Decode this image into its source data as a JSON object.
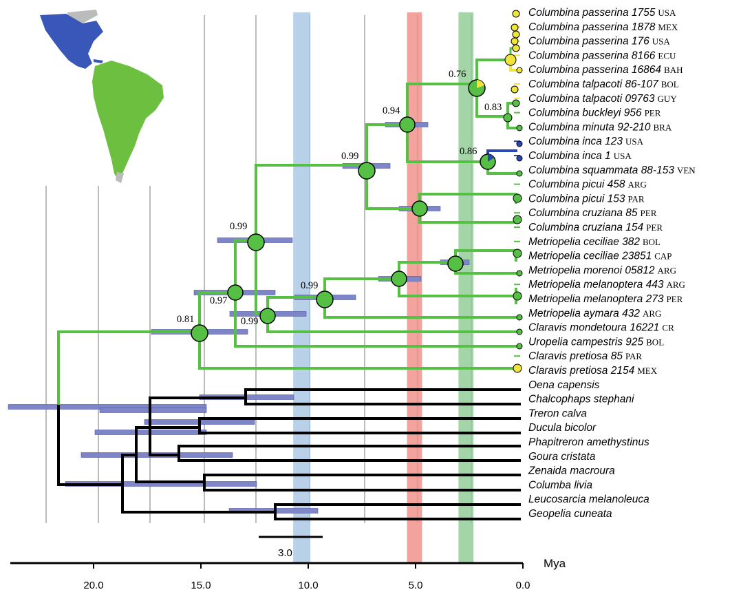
{
  "colors": {
    "green": "#55c043",
    "black": "#000000",
    "yellow": "#f0e43a",
    "blue": "#2a46b0",
    "hpd": "#7f86c8",
    "band_blue": "#a6c4e2",
    "band_red": "#ef8c84",
    "band_green": "#8cca92",
    "land_green": "#6cbf3f",
    "land_blue": "#3957b8",
    "land_grey": "#bbbbbb"
  },
  "taxa": [
    {
      "name": "Columbina passerina 1755",
      "code": "USA"
    },
    {
      "name": "Columbina passerina 1878",
      "code": "MEX"
    },
    {
      "name": "Columbina passerina 176",
      "code": "USA"
    },
    {
      "name": "Columbina passerina 8166",
      "code": "ECU"
    },
    {
      "name": "Columbina passerina 16864",
      "code": "BAH"
    },
    {
      "name": "Columbina talpacoti 86-107",
      "code": "BOL"
    },
    {
      "name": "Columbina talpacoti 09763",
      "code": "GUY"
    },
    {
      "name": "Columbina buckleyi 956",
      "code": "PER"
    },
    {
      "name": "Columbina minuta 92-210",
      "code": "BRA"
    },
    {
      "name": "Columbina inca 123",
      "code": "USA"
    },
    {
      "name": "Columbina inca 1",
      "code": "USA"
    },
    {
      "name": "Columbina squammata 88-153",
      "code": "VEN"
    },
    {
      "name": "Columbina picui 458",
      "code": "ARG"
    },
    {
      "name": "Columbina picui 153",
      "code": "PAR"
    },
    {
      "name": "Columbina cruziana 85",
      "code": "PER"
    },
    {
      "name": "Columbina cruziana 154",
      "code": "PER"
    },
    {
      "name": "Metriopelia ceciliae 382",
      "code": "BOL"
    },
    {
      "name": "Metriopelia ceciliae 23851",
      "code": "CAP"
    },
    {
      "name": "Metriopelia morenoi 05812",
      "code": "ARG"
    },
    {
      "name": "Metriopelia melanoptera 443",
      "code": "ARG"
    },
    {
      "name": "Metriopelia melanoptera 273",
      "code": "PER"
    },
    {
      "name": "Metriopelia aymara 432",
      "code": "ARG"
    },
    {
      "name": "Claravis mondetoura 16221",
      "code": "CR"
    },
    {
      "name": "Uropelia campestris 925",
      "code": "BOL"
    },
    {
      "name": "Claravis pretiosa 85",
      "code": "PAR"
    },
    {
      "name": "Claravis pretiosa 2154",
      "code": "MEX"
    },
    {
      "name": "Oena capensis",
      "code": ""
    },
    {
      "name": "Chalcophaps stephani",
      "code": ""
    },
    {
      "name": "Treron calva",
      "code": ""
    },
    {
      "name": "Ducula bicolor",
      "code": ""
    },
    {
      "name": "Phapitreron amethystinus",
      "code": ""
    },
    {
      "name": "Goura cristata",
      "code": ""
    },
    {
      "name": "Zenaida macroura",
      "code": ""
    },
    {
      "name": "Columba livia",
      "code": ""
    },
    {
      "name": "Leucosarcia melanoleuca",
      "code": ""
    },
    {
      "name": "Geopelia cuneata",
      "code": ""
    }
  ],
  "support_values": [
    "0.76",
    "0.94",
    "0.83",
    "0.86",
    "0.99",
    "0.99",
    "0.97",
    "0.99",
    "0.99",
    "0.81"
  ],
  "axis": {
    "unit": "Mya",
    "ticks": [
      20.0,
      15.0,
      10.0,
      5.0,
      0.0
    ],
    "tick_labels": [
      "20.0",
      "15.0",
      "10.0",
      "5.0",
      "0.0"
    ]
  },
  "scale_bar": {
    "label": "3.0",
    "length_my": 3.0
  },
  "highlight_bands_mya": [
    {
      "color": "band_blue",
      "from": 9.9,
      "to": 10.7
    },
    {
      "color": "band_red",
      "from": 4.7,
      "to": 5.4
    },
    {
      "color": "band_green",
      "from": 2.3,
      "to": 3.0
    }
  ],
  "map": {
    "regions": [
      "North/Central America",
      "South America"
    ]
  }
}
